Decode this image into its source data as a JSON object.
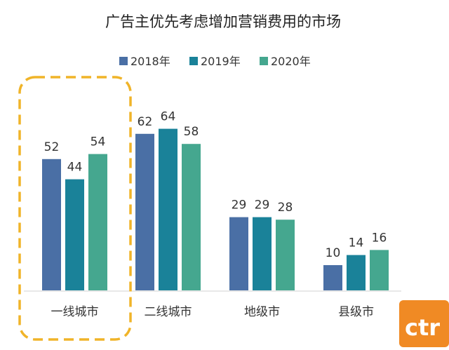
{
  "chart_data": {
    "type": "bar",
    "title": "广告主优先考虑增加营销费用的市场",
    "categories": [
      "一线城市",
      "二线城市",
      "地级市",
      "县级市"
    ],
    "series": [
      {
        "name": "2018年",
        "values": [
          52,
          62,
          29,
          10
        ],
        "color": "#4a6fa5"
      },
      {
        "name": "2019年",
        "values": [
          44,
          64,
          29,
          14
        ],
        "color": "#1a8299"
      },
      {
        "name": "2020年",
        "values": [
          54,
          58,
          28,
          16
        ],
        "color": "#45a78f"
      }
    ],
    "ylim": [
      0,
      70
    ],
    "grid": false,
    "legend_position": "top",
    "highlighted_category": "一线城市",
    "highlight_color": "#f0b429"
  },
  "watermark": {
    "text": "ctr",
    "color": "#f08a24"
  }
}
